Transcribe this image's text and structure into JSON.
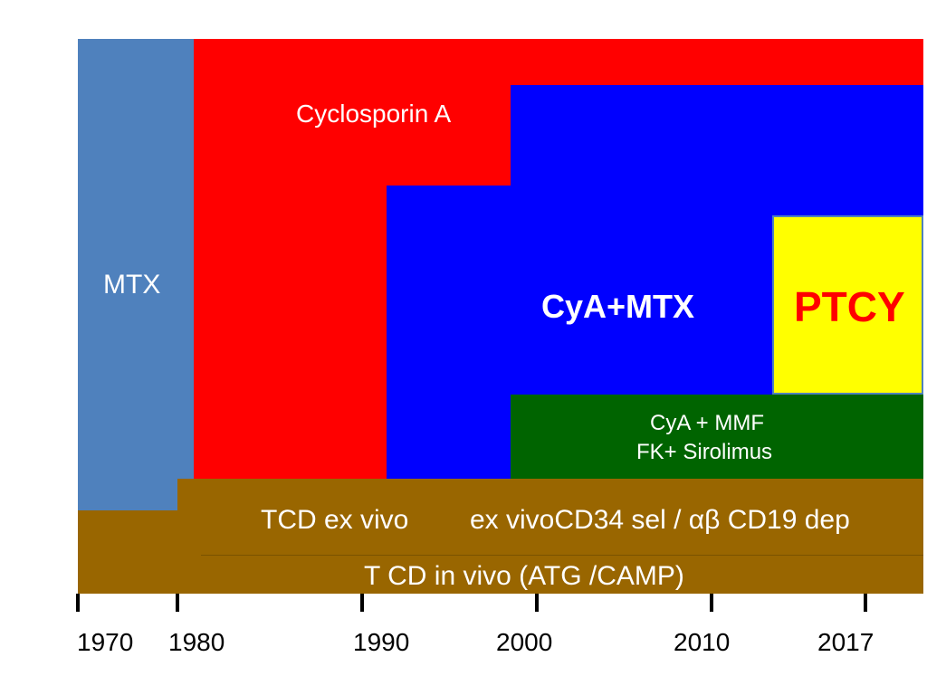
{
  "colors": {
    "mtx": "#4f81bd",
    "cyclosporin": "#ff0000",
    "cya_mtx": "#0000ff",
    "ptcy": "#ffff00",
    "ptcy_text": "#ff0000",
    "cya_mmf": "#006400",
    "tcd": "#996600"
  },
  "labels": {
    "mtx": "MTX",
    "cyclosporin": "Cyclosporin A",
    "cya_mtx": "CyA+MTX",
    "ptcy": "PTCY",
    "cya_mmf_line1": "CyA + MMF",
    "cya_mmf_line2": "FK+ Sirolimus",
    "tcd_ex_vivo": "TCD ex vivo",
    "ex_vivo_cd34": "ex vivoCD34 sel / αβ CD19 dep",
    "tcd_in_vivo": "T CD in  vivo (ATG /CAMP)"
  },
  "axis": {
    "years": [
      "1970",
      "1980",
      "1990",
      "2000",
      "2010",
      "2017"
    ]
  }
}
